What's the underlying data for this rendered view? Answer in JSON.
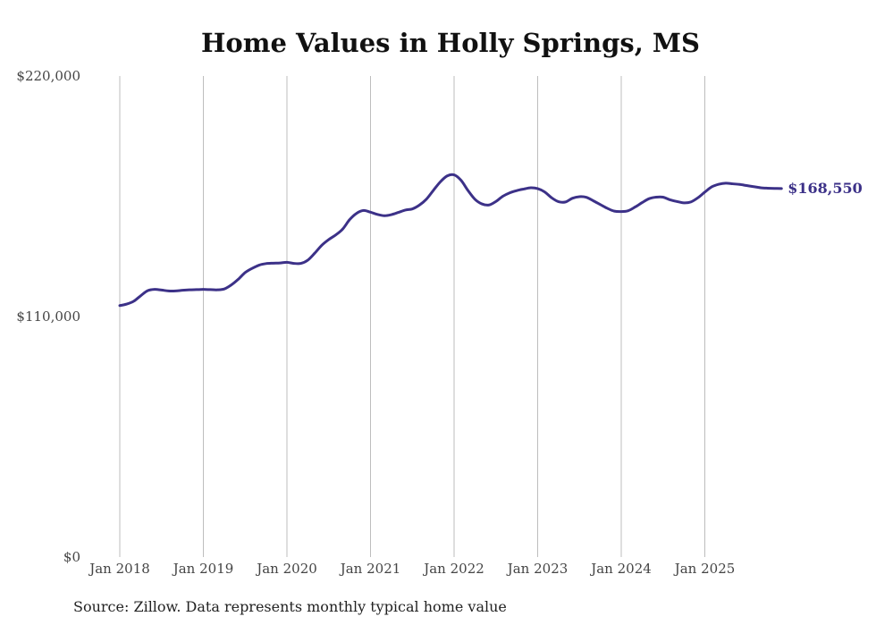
{
  "chart_data": {
    "type": "line",
    "title": "Home Values in Holly Springs, MS",
    "xlabel": "",
    "ylabel": "",
    "ylim": [
      0,
      220000
    ],
    "y_ticks": [
      {
        "value": 0,
        "label": "$0"
      },
      {
        "value": 110000,
        "label": "$110,000"
      },
      {
        "value": 220000,
        "label": "$220,000"
      }
    ],
    "x_ticks": [
      {
        "value": 2018,
        "label": "Jan 2018"
      },
      {
        "value": 2019,
        "label": "Jan 2019"
      },
      {
        "value": 2020,
        "label": "Jan 2020"
      },
      {
        "value": 2021,
        "label": "Jan 2021"
      },
      {
        "value": 2022,
        "label": "Jan 2022"
      },
      {
        "value": 2023,
        "label": "Jan 2023"
      },
      {
        "value": 2024,
        "label": "Jan 2024"
      },
      {
        "value": 2025,
        "label": "Jan 2025"
      }
    ],
    "xlim": [
      2018,
      2026
    ],
    "grid": "vertical",
    "series": [
      {
        "name": "Typical home value",
        "color": "#3c3188",
        "end_label": "$168,550",
        "x": [
          2018.0,
          2018.083,
          2018.167,
          2018.25,
          2018.333,
          2018.417,
          2018.5,
          2018.583,
          2018.667,
          2018.75,
          2018.833,
          2018.917,
          2019.0,
          2019.083,
          2019.167,
          2019.25,
          2019.333,
          2019.417,
          2019.5,
          2019.583,
          2019.667,
          2019.75,
          2019.833,
          2019.917,
          2020.0,
          2020.083,
          2020.167,
          2020.25,
          2020.333,
          2020.417,
          2020.5,
          2020.583,
          2020.667,
          2020.75,
          2020.833,
          2020.917,
          2021.0,
          2021.083,
          2021.167,
          2021.25,
          2021.333,
          2021.417,
          2021.5,
          2021.583,
          2021.667,
          2021.75,
          2021.833,
          2021.917,
          2022.0,
          2022.083,
          2022.167,
          2022.25,
          2022.333,
          2022.417,
          2022.5,
          2022.583,
          2022.667,
          2022.75,
          2022.833,
          2022.917,
          2023.0,
          2023.083,
          2023.167,
          2023.25,
          2023.333,
          2023.417,
          2023.5,
          2023.583,
          2023.667,
          2023.75,
          2023.833,
          2023.917,
          2024.0,
          2024.083,
          2024.167,
          2024.25,
          2024.333,
          2024.417,
          2024.5,
          2024.583,
          2024.667,
          2024.75,
          2024.833,
          2024.917,
          2025.0,
          2025.083,
          2025.167,
          2025.25,
          2025.333,
          2025.417,
          2025.5,
          2025.583,
          2025.667,
          2025.75,
          2025.833,
          2025.917
        ],
        "values": [
          115000,
          115700,
          117000,
          119500,
          121800,
          122400,
          122100,
          121700,
          121700,
          122000,
          122200,
          122300,
          122400,
          122300,
          122200,
          122600,
          124400,
          127000,
          130100,
          132000,
          133500,
          134200,
          134400,
          134500,
          134800,
          134300,
          134300,
          135800,
          139000,
          142600,
          145200,
          147300,
          150000,
          154300,
          157200,
          158500,
          157700,
          156700,
          156100,
          156600,
          157600,
          158700,
          159200,
          160900,
          163600,
          167600,
          171500,
          174300,
          174800,
          172300,
          167600,
          163600,
          161500,
          161000,
          162600,
          165000,
          166600,
          167600,
          168300,
          168900,
          168500,
          167000,
          164300,
          162500,
          162400,
          164100,
          164800,
          164500,
          162900,
          161200,
          159500,
          158200,
          158000,
          158400,
          160100,
          162100,
          163900,
          164600,
          164600,
          163400,
          162600,
          162000,
          162400,
          164300,
          166900,
          169300,
          170500,
          171000,
          170700,
          170400,
          169900,
          169400,
          168900,
          168700,
          168600,
          168550
        ]
      }
    ]
  },
  "footer": {
    "source": "Source: Zillow. Data represents monthly typical home value"
  }
}
